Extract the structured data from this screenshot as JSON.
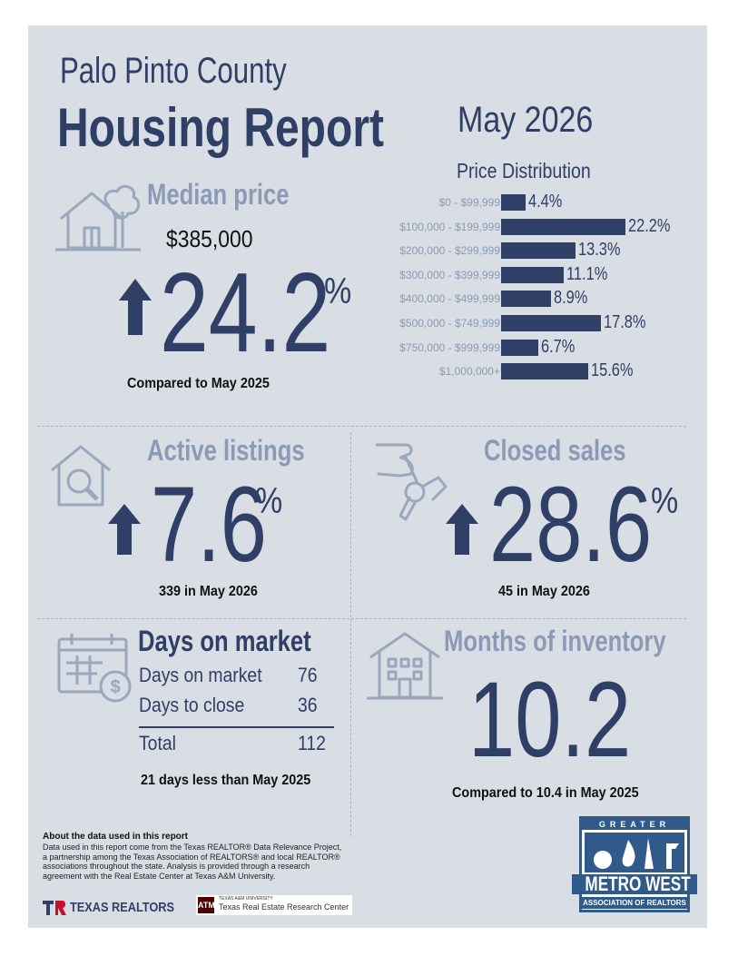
{
  "header": {
    "county": "Palo Pinto County",
    "title": "Housing Report",
    "month": "May 2026"
  },
  "median_price": {
    "label": "Median price",
    "price": "$385,000",
    "change": "24.2",
    "pct_sign": "%",
    "note": "Compared to May 2025",
    "icon": "house-tree-icon"
  },
  "price_distribution": {
    "title": "Price Distribution",
    "rows": [
      {
        "label": "$0 - $99,999",
        "value": "4.4%"
      },
      {
        "label": "$100,000 - $199,999",
        "value": "22.2%"
      },
      {
        "label": "$200,000 - $299,999",
        "value": "13.3%"
      },
      {
        "label": "$300,000 - $399,999",
        "value": "11.1%"
      },
      {
        "label": "$400,000 - $499,999",
        "value": "8.9%"
      },
      {
        "label": "$500,000 - $749,999",
        "value": "17.8%"
      },
      {
        "label": "$750,000 - $999,999",
        "value": "6.7%"
      },
      {
        "label": "$1,000,000+",
        "value": "15.6%"
      }
    ]
  },
  "chart_data": {
    "type": "bar",
    "title": "Price Distribution",
    "categories": [
      "$0 - $99,999",
      "$100,000 - $199,999",
      "$200,000 - $299,999",
      "$300,000 - $399,999",
      "$400,000 - $499,999",
      "$500,000 - $749,999",
      "$750,000 - $999,999",
      "$1,000,000+"
    ],
    "values": [
      4.4,
      22.2,
      13.3,
      11.1,
      8.9,
      17.8,
      6.7,
      15.6
    ]
  },
  "active_listings": {
    "label": "Active listings",
    "change": "7.6",
    "pct_sign": "%",
    "note": "339 in May 2026"
  },
  "closed_sales": {
    "label": "Closed sales",
    "change": "28.6",
    "pct_sign": "%",
    "note": "45 in May 2026"
  },
  "days_on_market": {
    "label": "Days on market",
    "rows": [
      {
        "label": "Days on market",
        "value": "76"
      },
      {
        "label": "Days to close",
        "value": "36"
      }
    ],
    "total_label": "Total",
    "total_value": "112",
    "note": "21 days less than May 2025"
  },
  "months_inventory": {
    "label": "Months of inventory",
    "value": "10.2",
    "note": "Compared to 10.4 in May 2025"
  },
  "about": {
    "heading": "About the data used in this report",
    "text": "Data used in this report come from the Texas REALTOR® Data Relevance Project, a partnership among the Texas Association of REALTORS® and local REALTOR® associations throughout the state. Analysis is provided through a research agreement with the Real Estate Center at Texas A&M University."
  },
  "logos": {
    "texas_realtors": "TEXAS REALTORS",
    "tamu_small": "TEXAS A&M UNIVERSITY",
    "tamu_center": "Texas Real Estate Research Center",
    "association_top": "GREATER",
    "association_main": "METRO WEST",
    "association_sub": "ASSOCIATION OF REALTORS"
  },
  "colors": {
    "navy": "#2f3f66",
    "muted": "#8b9bb5",
    "panel": "#d9dde4"
  }
}
